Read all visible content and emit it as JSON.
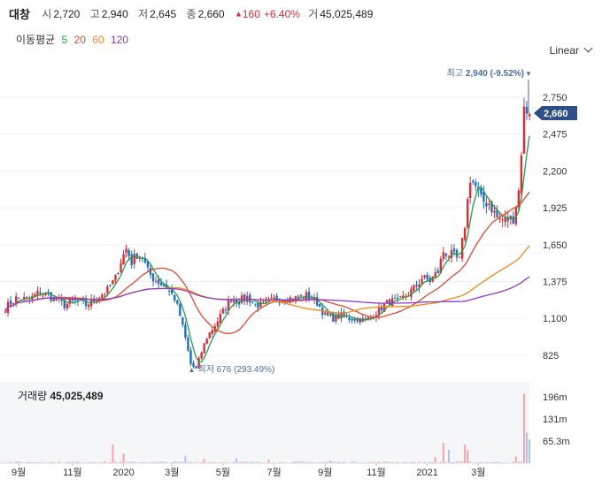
{
  "header": {
    "name": "대창",
    "open_label": "시",
    "open": "2,720",
    "high_label": "고",
    "high": "2,940",
    "low_label": "저",
    "low": "2,645",
    "close_label": "종",
    "close": "2,660",
    "change_arrow": "▲",
    "change": "160",
    "change_pct": "+6.40%",
    "volume_label": "거",
    "volume": "45,025,489"
  },
  "ma_legend": {
    "label": "이동평균",
    "items": [
      {
        "period": "5",
        "color": "#2a9d49"
      },
      {
        "period": "20",
        "color": "#e24a35"
      },
      {
        "period": "60",
        "color": "#f0891e"
      },
      {
        "period": "120",
        "color": "#8a3cc8"
      }
    ]
  },
  "scale_button": "Linear",
  "colors": {
    "up": "#e22b34",
    "down": "#1e6fc4",
    "accent": "#4a6fa0",
    "current_tag": "#2d4f86"
  },
  "chart_data": {
    "type": "candlestick",
    "y_ticks": [
      825,
      1100,
      1375,
      1650,
      1925,
      2200,
      2475,
      2750
    ],
    "y_tick_labels": [
      "825",
      "1,100",
      "1,375",
      "1,650",
      "1,925",
      "2,200",
      "2,475",
      "2,750"
    ],
    "ylim": [
      640,
      3000
    ],
    "x_months": [
      "9월",
      "11월",
      "2020",
      "3월",
      "5월",
      "7월",
      "9월",
      "11월",
      "2021",
      "3월"
    ],
    "annotations": {
      "high": {
        "prefix": "최고",
        "value": "2,940",
        "pct": "(-9.52%)",
        "arrow": "▼"
      },
      "low": {
        "arrow": "▲",
        "prefix": "최저",
        "value": "676",
        "pct": "(293.49%)"
      },
      "current": "2,660"
    },
    "price_trend": [
      [
        0,
        1180
      ],
      [
        4,
        1250
      ],
      [
        9,
        1240
      ],
      [
        13,
        1300
      ],
      [
        18,
        1250
      ],
      [
        22,
        1200
      ],
      [
        26,
        1230
      ],
      [
        30,
        1200
      ],
      [
        34,
        1250
      ],
      [
        38,
        1310
      ],
      [
        41,
        1400
      ],
      [
        43,
        1530
      ],
      [
        45,
        1620
      ],
      [
        47,
        1520
      ],
      [
        49,
        1580
      ],
      [
        51,
        1560
      ],
      [
        53,
        1450
      ],
      [
        55,
        1400
      ],
      [
        57,
        1370
      ],
      [
        60,
        1330
      ],
      [
        63,
        1250
      ],
      [
        65,
        1120
      ],
      [
        67,
        950
      ],
      [
        69,
        760
      ],
      [
        71,
        720
      ],
      [
        73,
        850
      ],
      [
        75,
        960
      ],
      [
        78,
        1050
      ],
      [
        81,
        1150
      ],
      [
        84,
        1250
      ],
      [
        87,
        1230
      ],
      [
        90,
        1260
      ],
      [
        93,
        1200
      ],
      [
        96,
        1200
      ],
      [
        100,
        1240
      ],
      [
        104,
        1250
      ],
      [
        108,
        1250
      ],
      [
        112,
        1270
      ],
      [
        116,
        1220
      ],
      [
        119,
        1120
      ],
      [
        122,
        1100
      ],
      [
        125,
        1120
      ],
      [
        128,
        1100
      ],
      [
        131,
        1100
      ],
      [
        134,
        1080
      ],
      [
        137,
        1130
      ],
      [
        140,
        1180
      ],
      [
        143,
        1230
      ],
      [
        146,
        1220
      ],
      [
        149,
        1270
      ],
      [
        152,
        1320
      ],
      [
        155,
        1400
      ],
      [
        158,
        1380
      ],
      [
        161,
        1450
      ],
      [
        163,
        1600
      ],
      [
        165,
        1580
      ],
      [
        167,
        1560
      ],
      [
        169,
        1530
      ],
      [
        171,
        1800
      ],
      [
        173,
        2150
      ],
      [
        175,
        2080
      ],
      [
        177,
        1980
      ],
      [
        180,
        1960
      ],
      [
        183,
        1850
      ],
      [
        186,
        1830
      ],
      [
        189,
        1850
      ],
      [
        191,
        2050
      ],
      [
        193,
        2650
      ],
      [
        195,
        2660
      ]
    ],
    "volume_axis": [
      "196m",
      "131m",
      "65.3m"
    ],
    "volume_ylim": [
      0,
      240
    ],
    "volume_spikes": [
      [
        40,
        55
      ],
      [
        44,
        28
      ],
      [
        67,
        22
      ],
      [
        74,
        12
      ],
      [
        86,
        15
      ],
      [
        98,
        10
      ],
      [
        121,
        8
      ],
      [
        160,
        18
      ],
      [
        163,
        60
      ],
      [
        165,
        40
      ],
      [
        171,
        55
      ],
      [
        172,
        38
      ],
      [
        190,
        20
      ],
      [
        193,
        205
      ],
      [
        194,
        90
      ],
      [
        195,
        70
      ]
    ],
    "volume_panel_label": "거래량",
    "volume_panel_value": "45,025,489"
  }
}
